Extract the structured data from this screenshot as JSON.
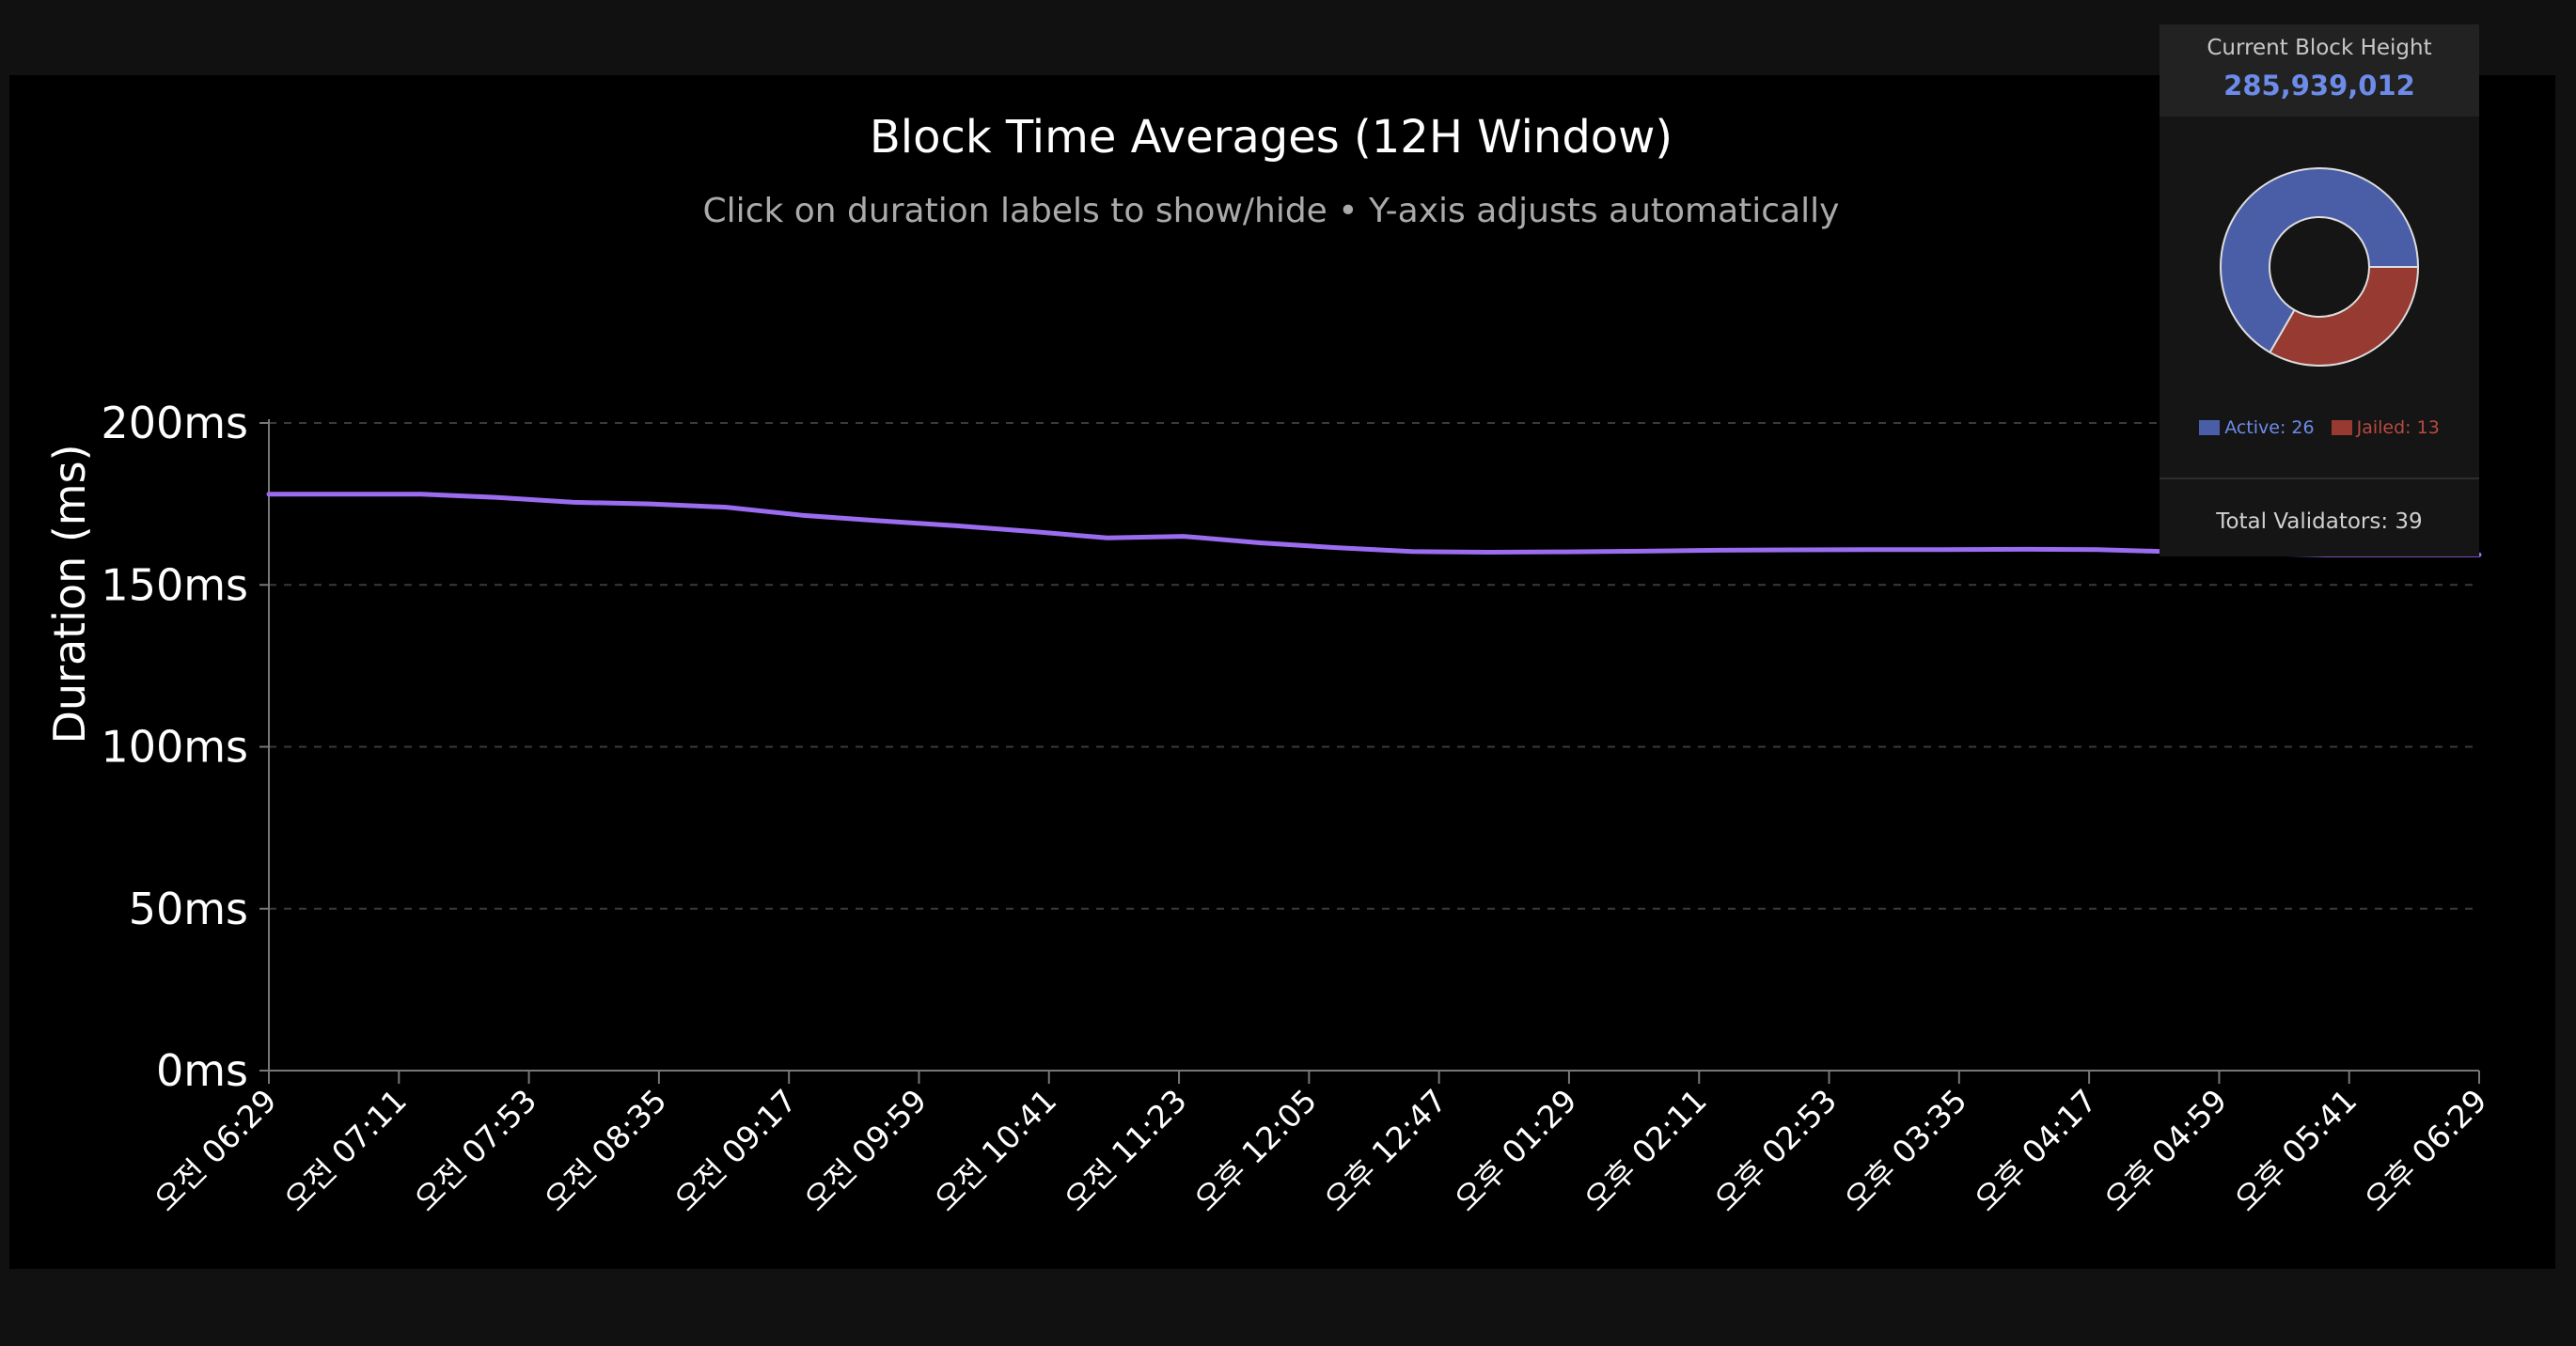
{
  "chart_data": {
    "type": "line",
    "title": "Block Time Averages (12H Window)",
    "subtitle": "Click on duration labels to show/hide • Y-axis adjusts automatically",
    "xlabel": "",
    "ylabel": "Duration (ms)",
    "ylim": [
      0,
      200
    ],
    "y_ticks": [
      "0ms",
      "50ms",
      "100ms",
      "150ms",
      "200ms"
    ],
    "x_ticks": [
      "오전 06:29",
      "오전 07:11",
      "오전 07:53",
      "오전 08:35",
      "오전 09:17",
      "오전 09:59",
      "오전 10:41",
      "오전 11:23",
      "오후 12:05",
      "오후 12:47",
      "오후 01:29",
      "오후 02:11",
      "오후 02:53",
      "오후 03:35",
      "오후 04:17",
      "오후 04:59",
      "오후 05:41",
      "오후 06:29"
    ],
    "grid": true,
    "series": [
      {
        "name": "",
        "color": "#9b6cf0",
        "values": [
          178,
          178,
          178,
          177,
          175.5,
          175,
          174,
          171.5,
          169.8,
          168.3,
          166.5,
          164.5,
          165,
          163,
          161.5,
          160.3,
          160.1,
          160.2,
          160.4,
          160.7,
          160.8,
          160.9,
          160.9,
          161,
          160.9,
          160.2,
          159.7,
          159.3,
          159.3,
          159.3
        ]
      }
    ]
  },
  "stats": {
    "block_height_label": "Current Block Height",
    "block_height": "285,939,012",
    "total_validators": "Total Validators: 39",
    "donut": {
      "slices": [
        {
          "label": "Active: 26",
          "value": 26,
          "color": "#4a5ea8",
          "text_color": "#6d8be8"
        },
        {
          "label": "Jailed: 13",
          "value": 13,
          "color": "#963a32",
          "text_color": "#b84a40"
        }
      ]
    }
  }
}
